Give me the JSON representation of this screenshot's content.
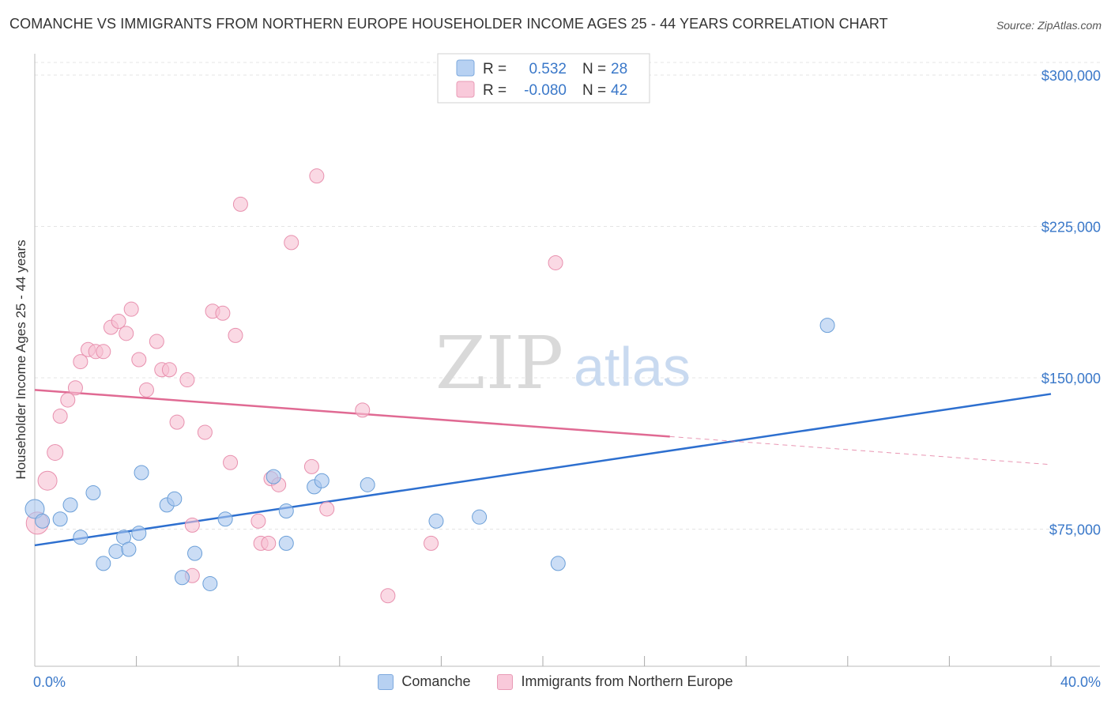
{
  "title": "COMANCHE VS IMMIGRANTS FROM NORTHERN EUROPE HOUSEHOLDER INCOME AGES 25 - 44 YEARS CORRELATION CHART",
  "source": "Source: ZipAtlas.com",
  "watermark": {
    "zip": "ZIP",
    "atlas": "atlas"
  },
  "legend": {
    "rows": [
      {
        "r_label": "R =",
        "r_value": "0.532",
        "n_label": "N =",
        "n_value": "28"
      },
      {
        "r_label": "R =",
        "r_value": "-0.080",
        "n_label": "N =",
        "n_value": "42"
      }
    ]
  },
  "bottom_legend": {
    "series1": "Comanche",
    "series2": "Immigrants from Northern Europe"
  },
  "chart_data": {
    "type": "scatter",
    "title": "COMANCHE VS IMMIGRANTS FROM NORTHERN EUROPE HOUSEHOLDER INCOME AGES 25 - 44 YEARS CORRELATION CHART",
    "xlabel": "",
    "ylabel": "Householder Income Ages 25 - 44 years",
    "xlim": [
      0,
      40
    ],
    "ylim": [
      0,
      310000
    ],
    "x_tick_labels": [
      "0.0%",
      "40.0%"
    ],
    "y_ticks": [
      75000,
      150000,
      225000,
      300000
    ],
    "y_tick_labels": [
      "$75,000",
      "$150,000",
      "$225,000",
      "$300,000"
    ],
    "colors": {
      "comanche": "#a9c7ee",
      "comanche_edge": "#6b9fd8",
      "comanche_line": "#2d6fcf",
      "immigrants": "#f7bfd2",
      "immigrants_edge": "#e890ae",
      "immigrants_line": "#e06a93"
    },
    "series": [
      {
        "name": "Comanche",
        "trend": {
          "x0": 0,
          "y0": 67000,
          "x1": 40,
          "y1": 142000,
          "solid_until": 40
        },
        "points": [
          [
            0.0,
            85000,
            12
          ],
          [
            0.3,
            79000,
            9
          ],
          [
            1.0,
            80000,
            9
          ],
          [
            1.4,
            87000,
            9
          ],
          [
            1.8,
            71000,
            9
          ],
          [
            2.3,
            93000,
            9
          ],
          [
            2.7,
            58000,
            9
          ],
          [
            3.2,
            64000,
            9
          ],
          [
            3.5,
            71000,
            9
          ],
          [
            3.7,
            65000,
            9
          ],
          [
            4.1,
            73000,
            9
          ],
          [
            4.2,
            103000,
            9
          ],
          [
            5.2,
            87000,
            9
          ],
          [
            5.5,
            90000,
            9
          ],
          [
            5.8,
            51000,
            9
          ],
          [
            6.3,
            63000,
            9
          ],
          [
            6.9,
            48000,
            9
          ],
          [
            7.5,
            80000,
            9
          ],
          [
            9.4,
            101000,
            9
          ],
          [
            9.9,
            84000,
            9
          ],
          [
            9.9,
            68000,
            9
          ],
          [
            11.0,
            96000,
            9
          ],
          [
            11.3,
            99000,
            9
          ],
          [
            13.1,
            97000,
            9
          ],
          [
            15.8,
            79000,
            9
          ],
          [
            17.5,
            81000,
            9
          ],
          [
            20.6,
            58000,
            9
          ],
          [
            31.2,
            176000,
            9
          ]
        ]
      },
      {
        "name": "Immigrants from Northern Europe",
        "trend": {
          "x0": 0,
          "y0": 144000,
          "x1": 40,
          "y1": 107000,
          "solid_until": 25
        },
        "points": [
          [
            0.1,
            78000,
            14
          ],
          [
            0.5,
            99000,
            12
          ],
          [
            0.8,
            113000,
            10
          ],
          [
            1.0,
            131000,
            9
          ],
          [
            1.3,
            139000,
            9
          ],
          [
            1.6,
            145000,
            9
          ],
          [
            1.8,
            158000,
            9
          ],
          [
            2.1,
            164000,
            9
          ],
          [
            2.4,
            163000,
            9
          ],
          [
            2.7,
            163000,
            9
          ],
          [
            3.0,
            175000,
            9
          ],
          [
            3.3,
            178000,
            9
          ],
          [
            3.6,
            172000,
            9
          ],
          [
            3.8,
            184000,
            9
          ],
          [
            4.1,
            159000,
            9
          ],
          [
            4.4,
            144000,
            9
          ],
          [
            4.8,
            168000,
            9
          ],
          [
            5.0,
            154000,
            9
          ],
          [
            5.3,
            154000,
            9
          ],
          [
            5.6,
            128000,
            9
          ],
          [
            6.0,
            149000,
            9
          ],
          [
            6.2,
            77000,
            9
          ],
          [
            6.2,
            52000,
            9
          ],
          [
            6.7,
            123000,
            9
          ],
          [
            7.0,
            183000,
            9
          ],
          [
            7.4,
            182000,
            9
          ],
          [
            7.7,
            108000,
            9
          ],
          [
            7.9,
            171000,
            9
          ],
          [
            8.1,
            236000,
            9
          ],
          [
            8.8,
            79000,
            9
          ],
          [
            8.9,
            68000,
            9
          ],
          [
            9.2,
            68000,
            9
          ],
          [
            9.3,
            100000,
            9
          ],
          [
            9.6,
            97000,
            9
          ],
          [
            10.1,
            217000,
            9
          ],
          [
            10.9,
            106000,
            9
          ],
          [
            11.1,
            250000,
            9
          ],
          [
            11.5,
            85000,
            9
          ],
          [
            12.9,
            134000,
            9
          ],
          [
            13.9,
            42000,
            9
          ],
          [
            15.6,
            68000,
            9
          ],
          [
            20.5,
            207000,
            9
          ]
        ]
      }
    ]
  }
}
